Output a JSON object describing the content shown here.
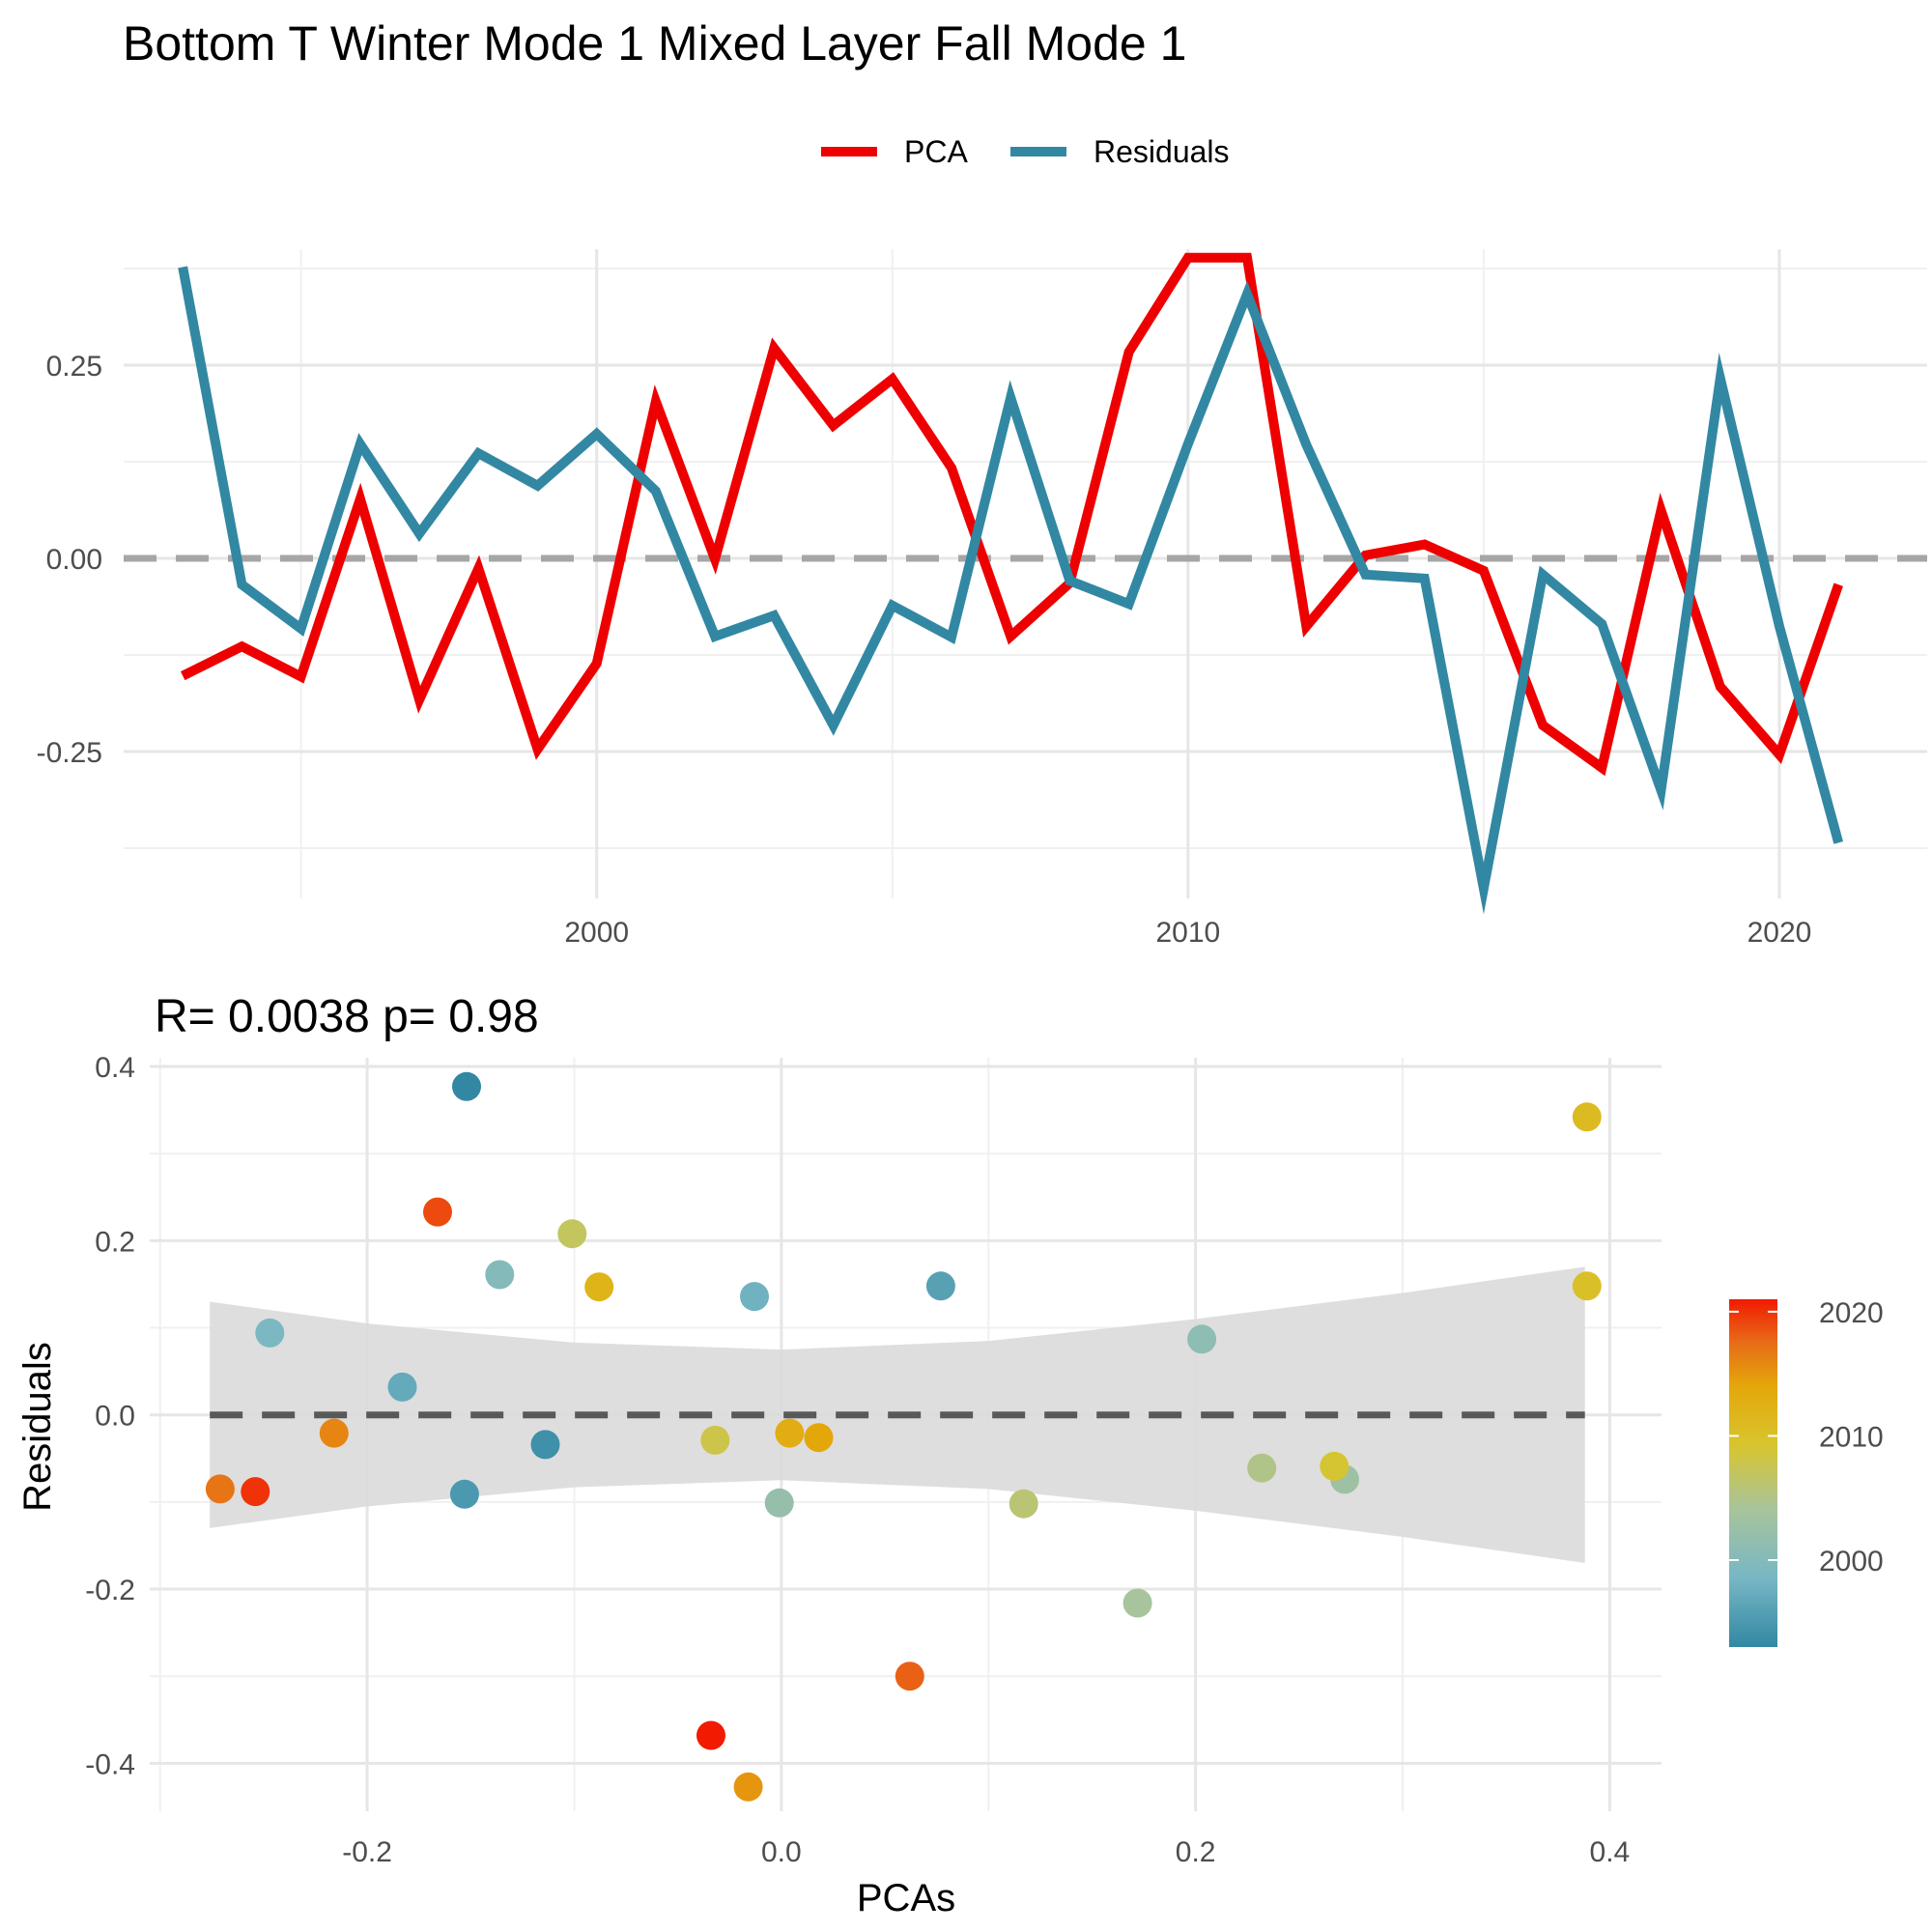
{
  "title": "Bottom T Winter Mode 1 Mixed Layer Fall Mode 1",
  "legend": {
    "items": [
      {
        "label": "PCA",
        "color": "#EE0000"
      },
      {
        "label": "Residuals",
        "color": "#3288A3"
      }
    ]
  },
  "colorbar": {
    "ticks": [
      "2020",
      "2010",
      "2000"
    ],
    "low_color": "#3288A3",
    "mid_color": "#D8C52E",
    "high_color": "#EE0000"
  },
  "chart_data": [
    {
      "type": "line",
      "title": "",
      "xlabel": "",
      "ylabel": "",
      "xlim": [
        1992,
        2022.5
      ],
      "ylim": [
        -0.44,
        0.4
      ],
      "x_ticks": [
        "2000",
        "2010",
        "2020"
      ],
      "y_ticks": [
        "0.25",
        "0.00",
        "-0.25"
      ],
      "reference_line": 0,
      "grid": true,
      "legend_position": "top",
      "x": [
        1993,
        1994,
        1995,
        1996,
        1997,
        1998,
        1999,
        2000,
        2001,
        2002,
        2003,
        2004,
        2005,
        2006,
        2007,
        2008,
        2009,
        2010,
        2011,
        2012,
        2013,
        2014,
        2015,
        2016,
        2017,
        2018,
        2019,
        2020,
        2021
      ],
      "series": [
        {
          "name": "PCA",
          "color": "#EE0000",
          "values": [
            -0.152,
            -0.114,
            -0.153,
            0.077,
            -0.183,
            -0.013,
            -0.247,
            -0.136,
            0.203,
            -0.001,
            0.272,
            0.172,
            0.232,
            0.117,
            -0.101,
            -0.032,
            0.267,
            0.389,
            0.389,
            -0.088,
            0.004,
            0.018,
            -0.016,
            -0.216,
            -0.271,
            0.062,
            -0.166,
            -0.254,
            -0.034
          ]
        },
        {
          "name": "Residuals",
          "color": "#3288A3",
          "values": [
            0.377,
            -0.034,
            -0.091,
            0.148,
            0.032,
            0.136,
            0.094,
            0.161,
            0.087,
            -0.101,
            -0.074,
            -0.216,
            -0.061,
            -0.102,
            0.208,
            -0.029,
            -0.059,
            0.148,
            0.342,
            0.147,
            -0.021,
            -0.026,
            -0.427,
            -0.021,
            -0.085,
            -0.3,
            0.233,
            -0.088,
            -0.368
          ]
        }
      ]
    },
    {
      "type": "scatter",
      "title": "R= 0.0038  p= 0.98",
      "xlabel": "PCAs",
      "ylabel": "Residuals",
      "xlim": [
        -0.305,
        0.425
      ],
      "ylim": [
        -0.455,
        0.41
      ],
      "x_ticks": [
        "-0.2",
        "0.0",
        "0.2",
        "0.4"
      ],
      "y_ticks": [
        "0.4",
        "0.2",
        "0.0",
        "-0.2",
        "-0.4"
      ],
      "color_by": "year",
      "color_range": [
        1993,
        2021
      ],
      "grid": true,
      "fit_line": {
        "x": [
          -0.276,
          0.388
        ],
        "y": [
          0.0,
          0.0
        ]
      },
      "confidence_band": {
        "x": [
          -0.276,
          -0.2,
          -0.1,
          0.0,
          0.1,
          0.2,
          0.3,
          0.388
        ],
        "upper": [
          0.13,
          0.105,
          0.083,
          0.075,
          0.085,
          0.11,
          0.14,
          0.17
        ],
        "lower": [
          -0.13,
          -0.105,
          -0.083,
          -0.075,
          -0.085,
          -0.11,
          -0.14,
          -0.17
        ]
      },
      "points": [
        {
          "year": 1993,
          "x": -0.152,
          "y": 0.377
        },
        {
          "year": 1994,
          "x": -0.114,
          "y": -0.034
        },
        {
          "year": 1995,
          "x": -0.153,
          "y": -0.091
        },
        {
          "year": 1996,
          "x": 0.077,
          "y": 0.148
        },
        {
          "year": 1997,
          "x": -0.183,
          "y": 0.032
        },
        {
          "year": 1998,
          "x": -0.013,
          "y": 0.136
        },
        {
          "year": 1999,
          "x": -0.247,
          "y": 0.094
        },
        {
          "year": 2000,
          "x": -0.136,
          "y": 0.161
        },
        {
          "year": 2001,
          "x": 0.203,
          "y": 0.087
        },
        {
          "year": 2002,
          "x": -0.001,
          "y": -0.101
        },
        {
          "year": 2003,
          "x": 0.272,
          "y": -0.074
        },
        {
          "year": 2004,
          "x": 0.172,
          "y": -0.216
        },
        {
          "year": 2005,
          "x": 0.232,
          "y": -0.061
        },
        {
          "year": 2006,
          "x": 0.117,
          "y": -0.102
        },
        {
          "year": 2007,
          "x": -0.101,
          "y": 0.208
        },
        {
          "year": 2008,
          "x": -0.032,
          "y": -0.029
        },
        {
          "year": 2009,
          "x": 0.267,
          "y": -0.059
        },
        {
          "year": 2010,
          "x": 0.389,
          "y": 0.148
        },
        {
          "year": 2011,
          "x": 0.389,
          "y": 0.342
        },
        {
          "year": 2012,
          "x": -0.088,
          "y": 0.147
        },
        {
          "year": 2013,
          "x": 0.004,
          "y": -0.021
        },
        {
          "year": 2014,
          "x": 0.018,
          "y": -0.026
        },
        {
          "year": 2015,
          "x": -0.016,
          "y": -0.427
        },
        {
          "year": 2016,
          "x": -0.216,
          "y": -0.021
        },
        {
          "year": 2017,
          "x": -0.271,
          "y": -0.085
        },
        {
          "year": 2018,
          "x": 0.062,
          "y": -0.3
        },
        {
          "year": 2019,
          "x": -0.166,
          "y": 0.233
        },
        {
          "year": 2020,
          "x": -0.254,
          "y": -0.088
        },
        {
          "year": 2021,
          "x": -0.034,
          "y": -0.368
        }
      ]
    }
  ]
}
